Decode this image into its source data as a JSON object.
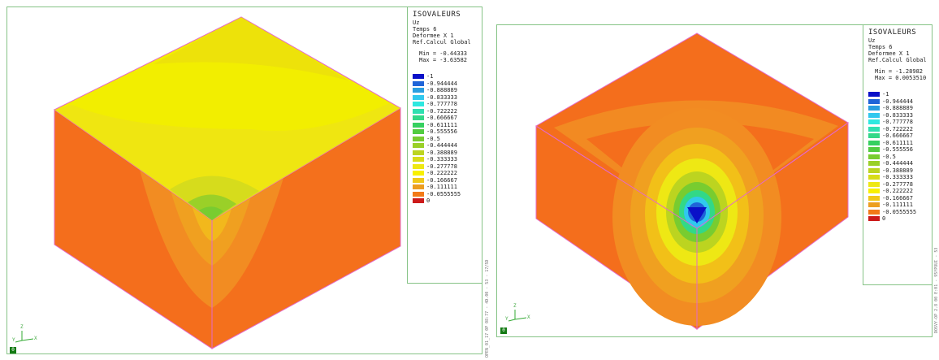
{
  "panels": [
    {
      "legend": {
        "title": "ISOVALEURS",
        "lines": [
          "Uz",
          "Temps 6",
          "Deformee X 1",
          "Ref.Calcul Global"
        ],
        "min_label": "Min = -0.44333",
        "max_label": "Max = -3.63582"
      },
      "side_text": "OPEN_01_17 0P 08:77 - 4D.00 - 53 - 17/5D",
      "corner_label": "0"
    },
    {
      "legend": {
        "title": "ISOVALEURS",
        "lines": [
          "Uz",
          "Temps 6",
          "Deformee X 1",
          "Ref.Calcul Global"
        ],
        "min_label": "Min = -1.28982",
        "max_label": "Max = 0.0053510"
      },
      "side_text": "DOSVY-OP 2.8 00 E:01 - 95YPOUI - 53",
      "corner_label": "0"
    }
  ],
  "legend_levels": [
    {
      "value": "-1",
      "color": "#0a10c8"
    },
    {
      "value": "-0.944444",
      "color": "#1f64d8"
    },
    {
      "value": "-0.888889",
      "color": "#2a9ee0"
    },
    {
      "value": "-0.833333",
      "color": "#30c8ee"
    },
    {
      "value": "-0.777778",
      "color": "#2ee8e0"
    },
    {
      "value": "-0.722222",
      "color": "#2ee0b0"
    },
    {
      "value": "-0.666667",
      "color": "#32d888"
    },
    {
      "value": "-0.611111",
      "color": "#36d060"
    },
    {
      "value": "-0.555556",
      "color": "#52cc40"
    },
    {
      "value": "-0.5",
      "color": "#78cc30"
    },
    {
      "value": "-0.444444",
      "color": "#9ad028"
    },
    {
      "value": "-0.388889",
      "color": "#bcd420"
    },
    {
      "value": "-0.333333",
      "color": "#d8dc18"
    },
    {
      "value": "-0.277778",
      "color": "#eee814"
    },
    {
      "value": "-0.222222",
      "color": "#f8f000"
    },
    {
      "value": "-0.166667",
      "color": "#f0c818"
    },
    {
      "value": "-0.111111",
      "color": "#ec9e20"
    },
    {
      "value": "-0.0555555",
      "color": "#f27a18"
    },
    {
      "value": "0",
      "color": "#cc1a1a"
    }
  ],
  "axes_labels": {
    "z": "Z",
    "x": "X",
    "y": "Y"
  }
}
